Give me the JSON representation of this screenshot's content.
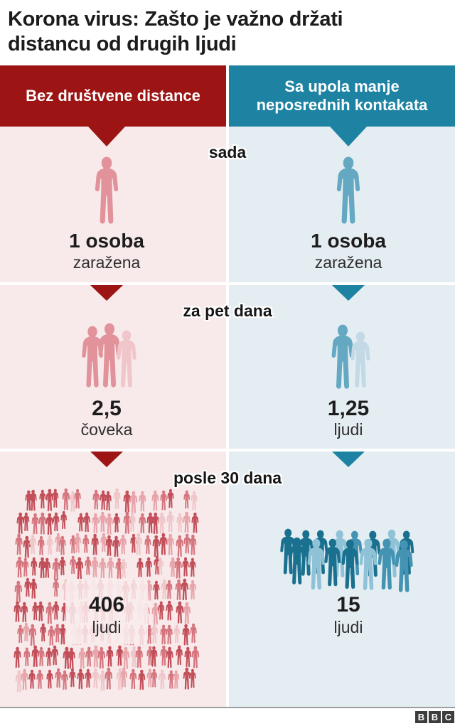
{
  "title": "Korona virus: Zašto je važno držati distancu od drugih ljudi",
  "header": {
    "left": "Bez društvene distance",
    "right": "Sa upola manje neposrednih kontakata"
  },
  "rows": [
    {
      "label": "sada",
      "left": {
        "value": "1 osoba",
        "caption": "zaražena"
      },
      "right": {
        "value": "1 osoba",
        "caption": "zaražena"
      }
    },
    {
      "label": "za pet dana",
      "left": {
        "value": "2,5",
        "caption": "čoveka"
      },
      "right": {
        "value": "1,25",
        "caption": "ljudi"
      }
    },
    {
      "label": "posle 30 dana",
      "left": {
        "value": "406",
        "caption": "ljudi"
      },
      "right": {
        "value": "15",
        "caption": "ljudi"
      }
    }
  ],
  "footer": {
    "logo_letters": [
      "B",
      "B",
      "C"
    ]
  },
  "colors": {
    "header_red": "#9c1414",
    "header_teal": "#1e83a2",
    "bg_left": "#f8eaeb",
    "bg_right": "#e4edf2",
    "person_pink": "#e2929a",
    "person_pink_faded": "#f0c6ca",
    "person_teal": "#64a8c2",
    "person_teal_faded": "#c3dae6",
    "crowd_red_palette": [
      "#c24f59",
      "#d5767f",
      "#e7a4aa",
      "#efc6c9"
    ],
    "crowd_teal_palette": [
      "#19708f",
      "#4493b2",
      "#8fc2d6"
    ]
  },
  "chart_data": {
    "type": "pictogram",
    "title": "Korona virus: Zašto je važno držati distancu od drugih ljudi",
    "categories": [
      "sada",
      "za pet dana",
      "posle 30 dana"
    ],
    "series": [
      {
        "name": "Bez društvene distance",
        "values": [
          1,
          2.5,
          406
        ],
        "value_labels": [
          "1 osoba zaražena",
          "2,5 čoveka",
          "406 ljudi"
        ],
        "color": "#9c1414"
      },
      {
        "name": "Sa upola manje neposrednih kontakata",
        "values": [
          1,
          1.25,
          15
        ],
        "value_labels": [
          "1 osoba zaražena",
          "1,25 ljudi",
          "15 ljudi"
        ],
        "color": "#1e83a2"
      }
    ],
    "legend_position": "top",
    "grid": false
  }
}
